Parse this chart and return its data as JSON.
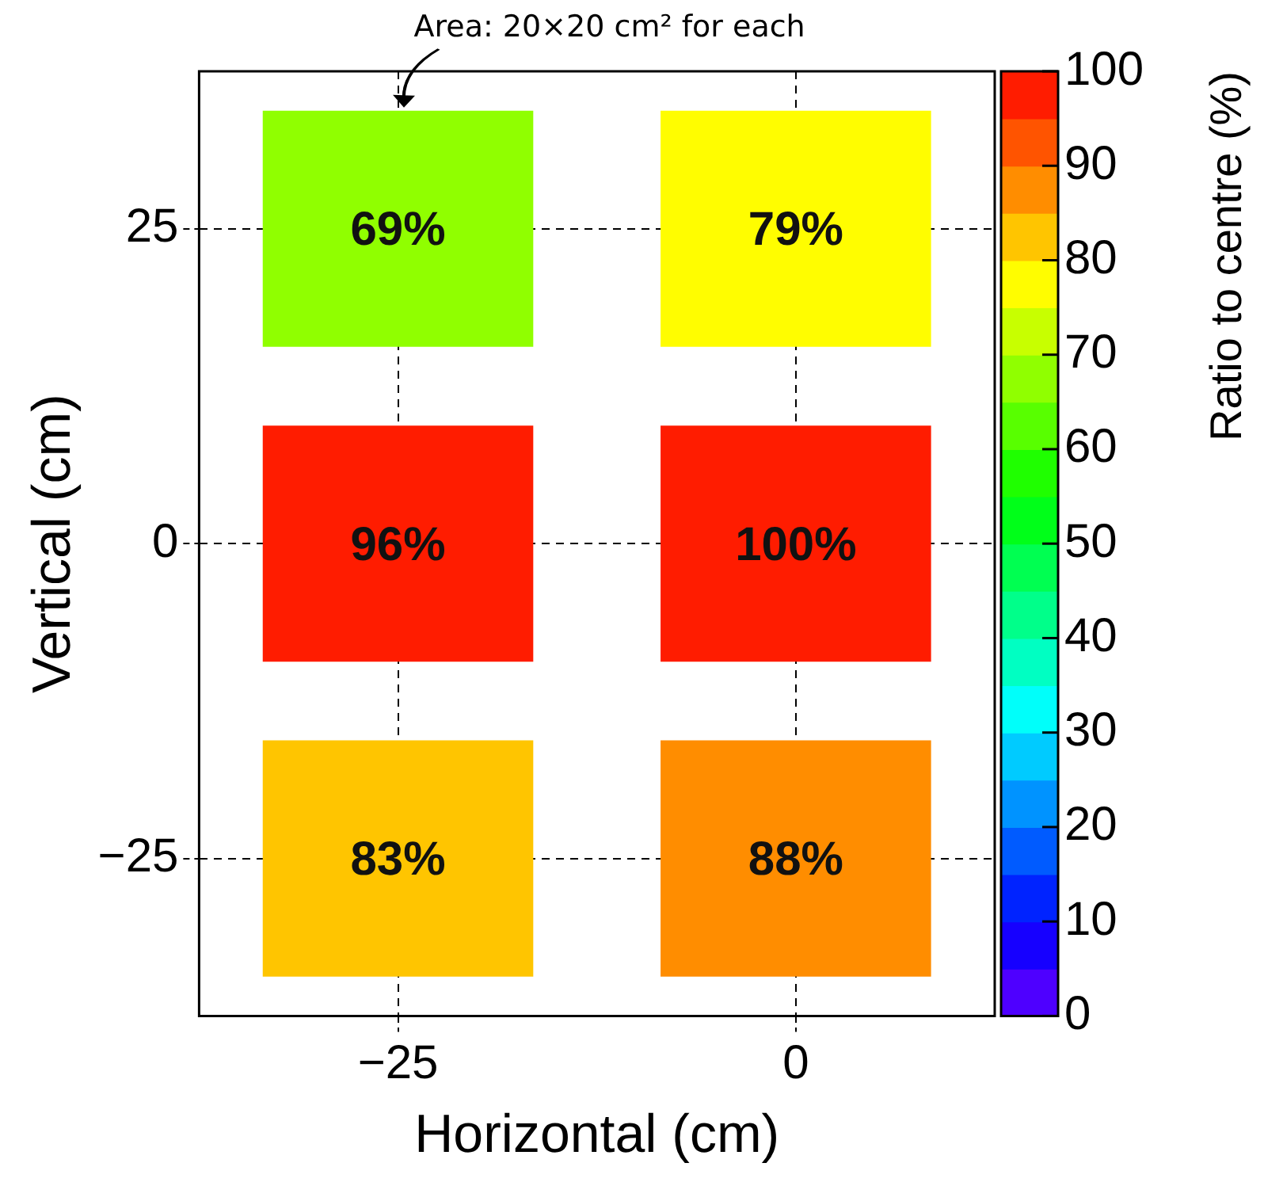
{
  "chart_data": {
    "type": "heatmap",
    "xlabel": "Horizontal (cm)",
    "ylabel": "Vertical (cm)",
    "clabel": "Ratio to centre (%)",
    "categories": [
      "−25",
      "0"
    ],
    "y_categories": [
      "25",
      "0",
      "−25"
    ],
    "cells": [
      [
        69,
        79
      ],
      [
        96,
        100
      ],
      [
        83,
        88
      ]
    ],
    "cell_labels": [
      [
        "69%",
        "79%"
      ],
      [
        "96%",
        "100%"
      ],
      [
        "83%",
        "88%"
      ]
    ],
    "clim": [
      0,
      100
    ],
    "cticks": [
      0,
      10,
      20,
      30,
      40,
      50,
      60,
      70,
      80,
      90,
      100
    ],
    "grid": true,
    "annotations": [
      "Area: 20×20 cm² for each"
    ]
  }
}
